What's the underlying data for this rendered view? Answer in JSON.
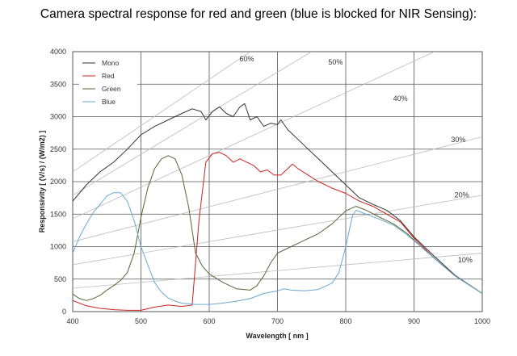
{
  "chart_data": {
    "type": "line",
    "title": "Camera spectral response for red and green (blue is blocked for NIR Sensing):",
    "xlabel": "Wavelength  [ nm ]",
    "ylabel": "Responsivity  [ (V/s) / (W/m2) ]",
    "xlim": [
      400,
      1000
    ],
    "ylim": [
      0,
      4000
    ],
    "xticks": [
      400,
      500,
      600,
      700,
      800,
      900,
      1000
    ],
    "yticks": [
      0,
      500,
      1000,
      1500,
      2000,
      2500,
      3000,
      3500,
      4000
    ],
    "grid": true,
    "legend_position": "top-left",
    "series": [
      {
        "name": "Mono",
        "color": "#333333",
        "points": [
          [
            400,
            1700
          ],
          [
            420,
            1950
          ],
          [
            440,
            2150
          ],
          [
            460,
            2300
          ],
          [
            480,
            2500
          ],
          [
            500,
            2720
          ],
          [
            520,
            2850
          ],
          [
            540,
            2950
          ],
          [
            560,
            3050
          ],
          [
            575,
            3120
          ],
          [
            588,
            3080
          ],
          [
            595,
            2950
          ],
          [
            605,
            3080
          ],
          [
            615,
            3150
          ],
          [
            625,
            3050
          ],
          [
            635,
            3000
          ],
          [
            645,
            3150
          ],
          [
            652,
            3200
          ],
          [
            660,
            2950
          ],
          [
            670,
            3000
          ],
          [
            680,
            2850
          ],
          [
            690,
            2900
          ],
          [
            700,
            2880
          ],
          [
            705,
            2950
          ],
          [
            715,
            2800
          ],
          [
            730,
            2650
          ],
          [
            745,
            2500
          ],
          [
            760,
            2350
          ],
          [
            780,
            2150
          ],
          [
            800,
            1950
          ],
          [
            820,
            1750
          ],
          [
            840,
            1650
          ],
          [
            860,
            1560
          ],
          [
            880,
            1400
          ],
          [
            900,
            1150
          ],
          [
            930,
            850
          ],
          [
            960,
            560
          ],
          [
            1000,
            280
          ]
        ]
      },
      {
        "name": "Red",
        "color": "#cc2222",
        "points": [
          [
            400,
            170
          ],
          [
            420,
            90
          ],
          [
            440,
            50
          ],
          [
            460,
            30
          ],
          [
            480,
            20
          ],
          [
            500,
            20
          ],
          [
            520,
            70
          ],
          [
            540,
            100
          ],
          [
            560,
            80
          ],
          [
            575,
            100
          ],
          [
            585,
            1400
          ],
          [
            595,
            2300
          ],
          [
            605,
            2430
          ],
          [
            615,
            2450
          ],
          [
            625,
            2400
          ],
          [
            635,
            2300
          ],
          [
            645,
            2350
          ],
          [
            655,
            2300
          ],
          [
            665,
            2250
          ],
          [
            675,
            2150
          ],
          [
            685,
            2180
          ],
          [
            695,
            2100
          ],
          [
            705,
            2100
          ],
          [
            715,
            2200
          ],
          [
            722,
            2270
          ],
          [
            730,
            2200
          ],
          [
            745,
            2100
          ],
          [
            760,
            2000
          ],
          [
            780,
            1900
          ],
          [
            800,
            1820
          ],
          [
            820,
            1700
          ],
          [
            840,
            1620
          ],
          [
            860,
            1500
          ],
          [
            880,
            1380
          ],
          [
            900,
            1130
          ],
          [
            930,
            820
          ],
          [
            960,
            550
          ],
          [
            1000,
            280
          ]
        ]
      },
      {
        "name": "Green",
        "color": "#556633",
        "points": [
          [
            400,
            270
          ],
          [
            410,
            200
          ],
          [
            420,
            170
          ],
          [
            430,
            200
          ],
          [
            440,
            250
          ],
          [
            450,
            330
          ],
          [
            460,
            400
          ],
          [
            470,
            480
          ],
          [
            480,
            600
          ],
          [
            490,
            900
          ],
          [
            500,
            1450
          ],
          [
            510,
            1900
          ],
          [
            520,
            2200
          ],
          [
            530,
            2350
          ],
          [
            540,
            2400
          ],
          [
            550,
            2350
          ],
          [
            560,
            2100
          ],
          [
            570,
            1600
          ],
          [
            580,
            900
          ],
          [
            590,
            700
          ],
          [
            600,
            580
          ],
          [
            620,
            450
          ],
          [
            640,
            350
          ],
          [
            660,
            330
          ],
          [
            670,
            400
          ],
          [
            680,
            550
          ],
          [
            690,
            750
          ],
          [
            700,
            900
          ],
          [
            710,
            950
          ],
          [
            720,
            1000
          ],
          [
            740,
            1100
          ],
          [
            760,
            1200
          ],
          [
            780,
            1350
          ],
          [
            800,
            1550
          ],
          [
            815,
            1620
          ],
          [
            830,
            1560
          ],
          [
            850,
            1450
          ],
          [
            870,
            1350
          ],
          [
            890,
            1200
          ],
          [
            910,
            1000
          ],
          [
            930,
            820
          ],
          [
            960,
            550
          ],
          [
            1000,
            280
          ]
        ]
      },
      {
        "name": "Blue",
        "color": "#66aacc",
        "points": [
          [
            400,
            900
          ],
          [
            410,
            1150
          ],
          [
            420,
            1350
          ],
          [
            430,
            1520
          ],
          [
            440,
            1650
          ],
          [
            450,
            1780
          ],
          [
            460,
            1830
          ],
          [
            470,
            1830
          ],
          [
            480,
            1700
          ],
          [
            490,
            1400
          ],
          [
            500,
            1000
          ],
          [
            510,
            720
          ],
          [
            520,
            450
          ],
          [
            530,
            300
          ],
          [
            540,
            210
          ],
          [
            550,
            160
          ],
          [
            560,
            130
          ],
          [
            580,
            110
          ],
          [
            600,
            110
          ],
          [
            620,
            130
          ],
          [
            640,
            160
          ],
          [
            660,
            200
          ],
          [
            680,
            280
          ],
          [
            700,
            320
          ],
          [
            710,
            350
          ],
          [
            720,
            330
          ],
          [
            740,
            320
          ],
          [
            760,
            340
          ],
          [
            780,
            440
          ],
          [
            790,
            600
          ],
          [
            800,
            1000
          ],
          [
            810,
            1480
          ],
          [
            815,
            1560
          ],
          [
            830,
            1500
          ],
          [
            850,
            1420
          ],
          [
            870,
            1330
          ],
          [
            890,
            1180
          ],
          [
            910,
            1000
          ],
          [
            930,
            820
          ],
          [
            960,
            550
          ],
          [
            1000,
            280
          ]
        ]
      }
    ],
    "efficiency_lines": [
      {
        "label": "60%",
        "points": [
          [
            400,
            2150
          ],
          [
            660,
            4000
          ]
        ]
      },
      {
        "label": "50%",
        "points": [
          [
            400,
            1790
          ],
          [
            750,
            4000
          ]
        ]
      },
      {
        "label": "40%",
        "points": [
          [
            400,
            1430
          ],
          [
            930,
            4000
          ]
        ]
      },
      {
        "label": "30%",
        "points": [
          [
            400,
            1075
          ],
          [
            1000,
            2690
          ]
        ]
      },
      {
        "label": "20%",
        "points": [
          [
            400,
            720
          ],
          [
            1000,
            1790
          ]
        ]
      },
      {
        "label": "10%",
        "points": [
          [
            400,
            360
          ],
          [
            1000,
            900
          ]
        ]
      }
    ],
    "efficiency_label_anchors": [
      {
        "label": "60%",
        "x": 655,
        "y": 3850
      },
      {
        "label": "50%",
        "x": 785,
        "y": 3800
      },
      {
        "label": "40%",
        "x": 880,
        "y": 3240
      },
      {
        "label": "30%",
        "x": 965,
        "y": 2610
      },
      {
        "label": "20%",
        "x": 970,
        "y": 1760
      },
      {
        "label": "10%",
        "x": 975,
        "y": 760
      }
    ]
  }
}
